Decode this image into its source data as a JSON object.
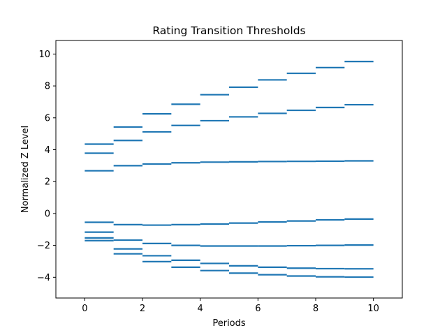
{
  "chart_data": {
    "type": "hlines",
    "title": "Rating Transition Thresholds",
    "xlabel": "Periods",
    "ylabel": "Normalized Z Level",
    "xlim": [
      -1,
      11
    ],
    "ylim": [
      -5.3,
      10.85
    ],
    "xticks": [
      0,
      2,
      4,
      6,
      8,
      10
    ],
    "yticks": [
      -4,
      -2,
      0,
      2,
      4,
      6,
      8,
      10
    ],
    "grid": false,
    "line_color": "#1f77b4",
    "series": [
      {
        "values": [
          4.35,
          5.42,
          6.25,
          6.85,
          7.45,
          7.92,
          8.38,
          8.79,
          9.15,
          9.53
        ]
      },
      {
        "values": [
          3.78,
          4.58,
          5.12,
          5.52,
          5.82,
          6.06,
          6.28,
          6.47,
          6.65,
          6.82
        ]
      },
      {
        "values": [
          2.68,
          3.0,
          3.1,
          3.18,
          3.22,
          3.24,
          3.26,
          3.27,
          3.28,
          3.3
        ]
      },
      {
        "values": [
          -0.55,
          -0.7,
          -0.73,
          -0.7,
          -0.66,
          -0.6,
          -0.53,
          -0.47,
          -0.4,
          -0.35
        ]
      },
      {
        "values": [
          -1.17,
          -1.67,
          -1.88,
          -2.0,
          -2.04,
          -2.04,
          -2.04,
          -2.02,
          -2.0,
          -1.98
        ]
      },
      {
        "values": [
          -1.53,
          -2.22,
          -2.65,
          -2.93,
          -3.13,
          -3.28,
          -3.37,
          -3.43,
          -3.46,
          -3.47
        ]
      },
      {
        "values": [
          -1.7,
          -2.53,
          -3.02,
          -3.37,
          -3.58,
          -3.74,
          -3.84,
          -3.92,
          -3.97,
          -3.99
        ]
      }
    ]
  }
}
